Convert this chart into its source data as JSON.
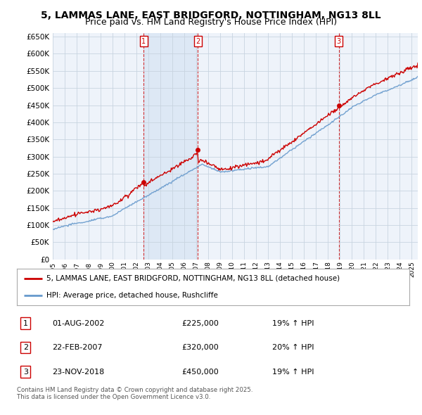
{
  "title": "5, LAMMAS LANE, EAST BRIDGFORD, NOTTINGHAM, NG13 8LL",
  "subtitle": "Price paid vs. HM Land Registry's House Price Index (HPI)",
  "ylim": [
    0,
    660000
  ],
  "yticks": [
    0,
    50000,
    100000,
    150000,
    200000,
    250000,
    300000,
    350000,
    400000,
    450000,
    500000,
    550000,
    600000,
    650000
  ],
  "ytick_labels": [
    "£0",
    "£50K",
    "£100K",
    "£150K",
    "£200K",
    "£250K",
    "£300K",
    "£350K",
    "£400K",
    "£450K",
    "£500K",
    "£550K",
    "£600K",
    "£650K"
  ],
  "xlim_start": 1995.0,
  "xlim_end": 2025.5,
  "background_color": "#ffffff",
  "chart_bg_color": "#eef3fa",
  "shade_color": "#dde8f5",
  "grid_color": "#c8d4e0",
  "sale_color": "#cc0000",
  "hpi_color": "#6699cc",
  "sale_dates": [
    2002.583,
    2007.13,
    2018.9
  ],
  "sale_prices": [
    225000,
    320000,
    450000
  ],
  "sale_labels": [
    "1",
    "2",
    "3"
  ],
  "legend_sale_label": "5, LAMMAS LANE, EAST BRIDGFORD, NOTTINGHAM, NG13 8LL (detached house)",
  "legend_hpi_label": "HPI: Average price, detached house, Rushcliffe",
  "table_rows": [
    {
      "num": "1",
      "date": "01-AUG-2002",
      "price": "£225,000",
      "change": "19% ↑ HPI"
    },
    {
      "num": "2",
      "date": "22-FEB-2007",
      "price": "£320,000",
      "change": "20% ↑ HPI"
    },
    {
      "num": "3",
      "date": "23-NOV-2018",
      "price": "£450,000",
      "change": "19% ↑ HPI"
    }
  ],
  "footnote": "Contains HM Land Registry data © Crown copyright and database right 2025.\nThis data is licensed under the Open Government Licence v3.0.",
  "title_fontsize": 10,
  "subtitle_fontsize": 9
}
